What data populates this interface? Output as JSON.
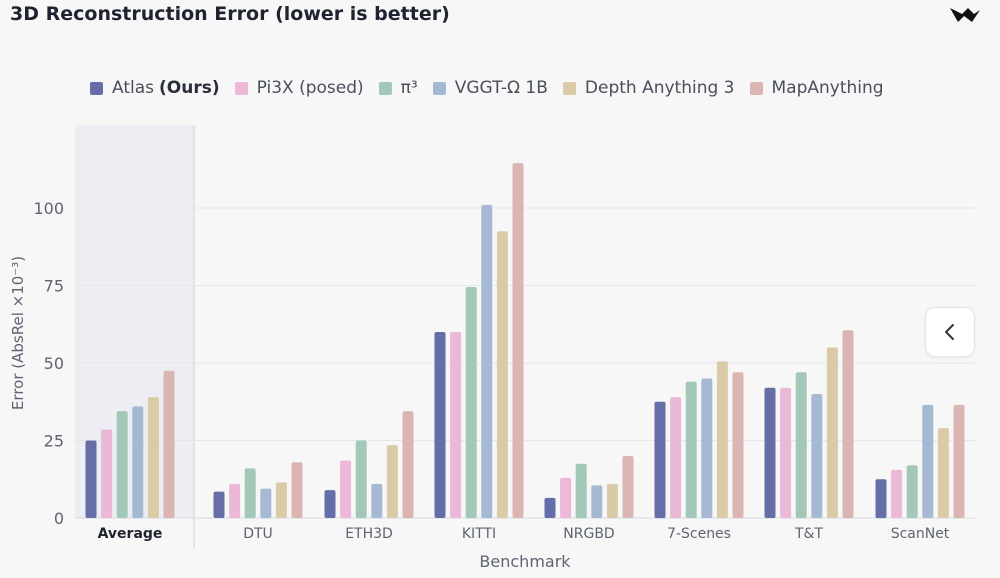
{
  "title": "3D Reconstruction Error (lower is better)",
  "legend": {
    "items": [
      {
        "label": "Atlas",
        "suffix": "(Ours)",
        "color": "#666ea8"
      },
      {
        "label": "Pi3X (posed)",
        "suffix": "",
        "color": "#ebb8d8"
      },
      {
        "label": "π³",
        "suffix": "",
        "color": "#a3c8b7"
      },
      {
        "label": "VGGT-Ω 1B",
        "suffix": "",
        "color": "#a5b9d2"
      },
      {
        "label": "Depth Anything 3",
        "suffix": "",
        "color": "#d8cba5"
      },
      {
        "label": "MapAnything",
        "suffix": "",
        "color": "#dbb5b2"
      }
    ]
  },
  "nav_button": {
    "icon": "chevron-left-icon"
  },
  "chart_data": {
    "type": "bar",
    "title": "3D Reconstruction Error (lower is better)",
    "xlabel": "Benchmark",
    "ylabel": "Error (AbsRel ×10⁻³)",
    "ylim": [
      0,
      125
    ],
    "yticks": [
      0,
      25,
      50,
      75,
      100
    ],
    "grid": true,
    "legend_position": "top",
    "highlighted_category": "Average",
    "categories": [
      "Average",
      "DTU",
      "ETH3D",
      "KITTI",
      "NRGBD",
      "7-Scenes",
      "T&T",
      "ScanNet"
    ],
    "series": [
      {
        "name": "Atlas (Ours)",
        "color": "#666ea8",
        "values": [
          25,
          8.5,
          9,
          60,
          6.5,
          37.5,
          42,
          12.5
        ]
      },
      {
        "name": "Pi3X (posed)",
        "color": "#ebb8d8",
        "values": [
          28.5,
          11,
          18.5,
          60,
          13,
          39,
          42,
          15.5
        ]
      },
      {
        "name": "π³",
        "color": "#a3c8b7",
        "values": [
          34.5,
          16,
          25,
          74.5,
          17.5,
          44,
          47,
          17
        ]
      },
      {
        "name": "VGGT-Ω 1B",
        "color": "#a5b9d2",
        "values": [
          36,
          9.5,
          11,
          101,
          10.5,
          45,
          40,
          36.5
        ]
      },
      {
        "name": "Depth Anything 3",
        "color": "#d8cba5",
        "values": [
          39,
          11.5,
          23.5,
          92.5,
          11,
          50.5,
          55,
          29
        ]
      },
      {
        "name": "MapAnything",
        "color": "#dbb5b2",
        "values": [
          47.5,
          18,
          34.5,
          114.5,
          20,
          47,
          60.5,
          36.5
        ]
      }
    ]
  }
}
